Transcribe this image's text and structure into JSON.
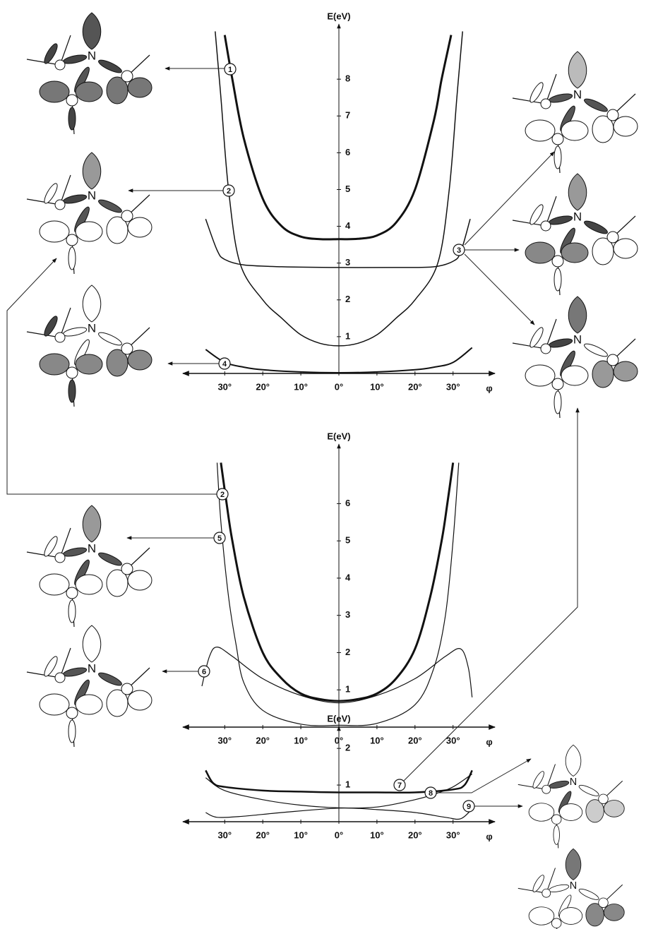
{
  "diagram": {
    "center_atom": "N"
  },
  "chart_data": [
    {
      "type": "line",
      "ylabel": "E(eV)",
      "xlabel": "φ",
      "xlim": [
        -41,
        41
      ],
      "ylim": [
        0,
        9.5
      ],
      "xticks": [
        {
          "value": -30,
          "label": "30°"
        },
        {
          "value": -20,
          "label": "20°"
        },
        {
          "value": -10,
          "label": "10°"
        },
        {
          "value": 0,
          "label": "0°"
        },
        {
          "value": 10,
          "label": "10°"
        },
        {
          "value": 20,
          "label": "20°"
        },
        {
          "value": 30,
          "label": "30°"
        }
      ],
      "yticks": [
        1,
        2,
        3,
        4,
        5,
        6,
        7,
        8
      ],
      "series": [
        {
          "name": "1",
          "color": "#111",
          "line_width": 3,
          "x": [
            -30,
            -28,
            -25,
            -20,
            -15,
            -10,
            -5,
            0,
            5,
            10,
            15,
            20,
            25,
            27,
            29.5
          ],
          "values": [
            9.2,
            8.0,
            6.4,
            4.75,
            4.0,
            3.72,
            3.65,
            3.65,
            3.66,
            3.75,
            4.1,
            5.0,
            6.9,
            8.0,
            9.2
          ]
        },
        {
          "name": "2",
          "color": "#111",
          "line_width": 1.5,
          "x": [
            -32.5,
            -31,
            -29,
            -26,
            -20,
            -15,
            -10,
            -5,
            0,
            5,
            10,
            15,
            20,
            26,
            29,
            31,
            32.5
          ],
          "values": [
            9.3,
            7.5,
            5.0,
            3.0,
            2.0,
            1.5,
            1.05,
            0.82,
            0.75,
            0.82,
            1.05,
            1.5,
            2.0,
            3.0,
            5.0,
            7.5,
            9.3
          ]
        },
        {
          "name": "3",
          "color": "#111",
          "line_width": 1.5,
          "x": [
            -35,
            -32,
            -30,
            -25,
            -15,
            0,
            15,
            25,
            30,
            32,
            34.5
          ],
          "values": [
            4.2,
            3.35,
            3.1,
            2.95,
            2.9,
            2.88,
            2.88,
            2.9,
            3.05,
            3.3,
            4.2
          ]
        },
        {
          "name": "4",
          "color": "#111",
          "line_width": 2,
          "x": [
            -35,
            -30,
            -25,
            -20,
            -10,
            0,
            10,
            20,
            25,
            30,
            35
          ],
          "values": [
            0.65,
            0.3,
            0.17,
            0.1,
            0.04,
            0.02,
            0.04,
            0.1,
            0.17,
            0.3,
            0.7
          ]
        }
      ]
    },
    {
      "type": "line",
      "ylabel": "E(eV)",
      "xlabel": "φ",
      "xlim": [
        -41,
        41
      ],
      "ylim": [
        0,
        7.6
      ],
      "xticks": [
        {
          "value": -30,
          "label": "30°"
        },
        {
          "value": -20,
          "label": "20°"
        },
        {
          "value": -10,
          "label": "10°"
        },
        {
          "value": 0,
          "label": "0°"
        },
        {
          "value": 10,
          "label": "10°"
        },
        {
          "value": 20,
          "label": "20°"
        },
        {
          "value": 30,
          "label": "30°"
        }
      ],
      "yticks": [
        1,
        2,
        3,
        4,
        5,
        6
      ],
      "series": [
        {
          "name": "2",
          "color": "#111",
          "line_width": 1.2,
          "x": [
            -32,
            -31,
            -29,
            -27,
            -25,
            -20,
            -10,
            0,
            10,
            20,
            25,
            28,
            30,
            31.5
          ],
          "values": [
            7.1,
            5.5,
            3.5,
            2.2,
            1.2,
            0.45,
            0.08,
            0.05,
            0.1,
            0.6,
            1.6,
            3.0,
            5.0,
            7.1
          ]
        },
        {
          "name": "5",
          "color": "#111",
          "line_width": 3,
          "x": [
            -31,
            -29.5,
            -28,
            -25,
            -20,
            -15,
            -10,
            -5,
            0,
            5,
            10,
            15,
            20,
            24,
            27,
            28.5,
            30
          ],
          "values": [
            7.1,
            6.0,
            5.0,
            3.5,
            2.0,
            1.3,
            0.9,
            0.75,
            0.7,
            0.75,
            0.9,
            1.3,
            2.1,
            3.5,
            5.0,
            6.0,
            7.1
          ]
        },
        {
          "name": "6",
          "color": "#111",
          "line_width": 1.2,
          "x": [
            -36,
            -34,
            -32,
            -28,
            -20,
            -10,
            0,
            10,
            20,
            28,
            32,
            34,
            35
          ],
          "values": [
            1.1,
            1.9,
            2.15,
            1.9,
            1.3,
            0.85,
            0.65,
            0.85,
            1.3,
            1.9,
            2.1,
            1.6,
            0.8
          ]
        }
      ]
    },
    {
      "type": "line",
      "ylabel": "E(eV)",
      "xlabel": "φ",
      "xlim": [
        -41,
        41
      ],
      "ylim": [
        0,
        2.6
      ],
      "xticks": [
        {
          "value": -30,
          "label": "30°"
        },
        {
          "value": -20,
          "label": "20°"
        },
        {
          "value": -10,
          "label": "10°"
        },
        {
          "value": 0,
          "label": "0°"
        },
        {
          "value": 10,
          "label": "10°"
        },
        {
          "value": 20,
          "label": "20°"
        },
        {
          "value": 30,
          "label": "30°"
        }
      ],
      "yticks": [
        1,
        2
      ],
      "series": [
        {
          "name": "7",
          "color": "#111",
          "line_width": 2.5,
          "x": [
            -35,
            -33,
            -30,
            -20,
            -10,
            0,
            10,
            20,
            30,
            33,
            35
          ],
          "values": [
            1.4,
            1.05,
            0.95,
            0.85,
            0.82,
            0.8,
            0.8,
            0.8,
            0.88,
            1.0,
            1.4
          ]
        },
        {
          "name": "8",
          "color": "#111",
          "line_width": 1.2,
          "x": [
            -35,
            -30,
            -20,
            -10,
            0,
            10,
            20,
            25,
            30,
            35
          ],
          "values": [
            1.2,
            0.85,
            0.6,
            0.45,
            0.38,
            0.4,
            0.6,
            0.75,
            0.95,
            1.3
          ]
        },
        {
          "name": "9",
          "color": "#111",
          "line_width": 1.2,
          "x": [
            -35,
            -32,
            -25,
            -15,
            0,
            10,
            20,
            28,
            32,
            35
          ],
          "values": [
            0.25,
            0.12,
            0.15,
            0.25,
            0.37,
            0.33,
            0.25,
            0.12,
            0.08,
            0.35
          ]
        }
      ]
    }
  ]
}
